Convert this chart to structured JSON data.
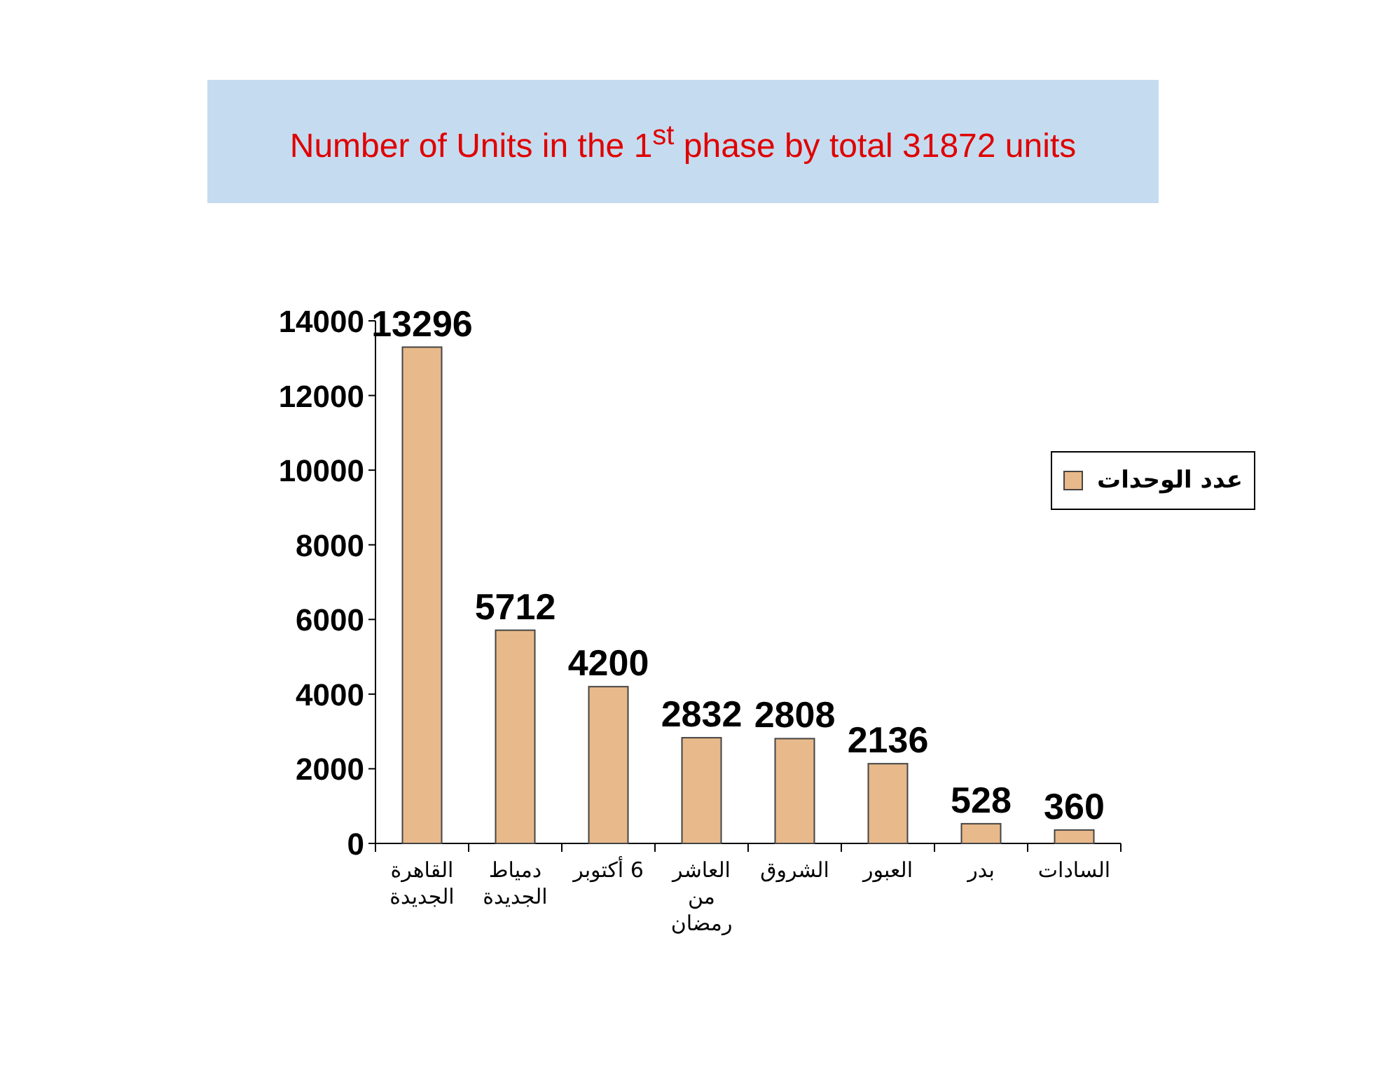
{
  "chart_data": {
    "type": "bar",
    "title": "Number of Units in the 1$^{st}$ phase by total   31872 units",
    "categories": [
      "القاهرة الجديدة",
      "دمياط الجديدة",
      "6 أكتوبر",
      "العاشر من رمضان",
      "الشروق",
      "العبور",
      "بدر",
      "السادات"
    ],
    "series": [
      {
        "name": "عدد الوحدات",
        "color": "#e8b98a",
        "values": [
          13296,
          5712,
          4200,
          2832,
          2808,
          2136,
          528,
          360
        ]
      }
    ],
    "ylim": [
      0,
      14000
    ],
    "yticks": [
      0,
      2000,
      4000,
      6000,
      8000,
      10000,
      12000,
      14000
    ],
    "data_labels": true,
    "legend": "right",
    "grid": false
  }
}
